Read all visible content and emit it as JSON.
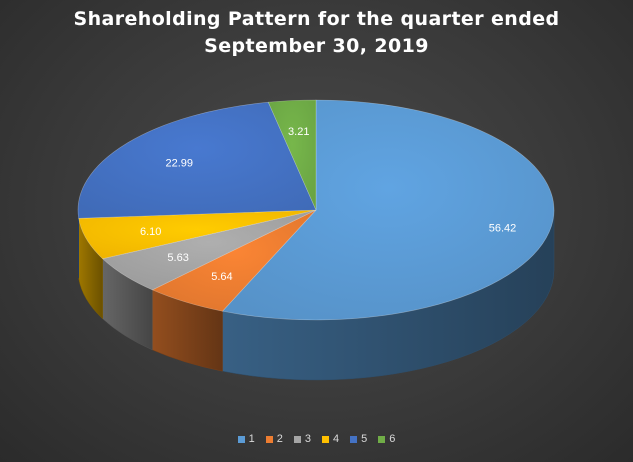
{
  "chart_data": {
    "type": "pie",
    "title_lines": [
      "Shareholding Pattern for the quarter ended",
      "September 30, 2019"
    ],
    "categories": [
      "1",
      "2",
      "3",
      "4",
      "5",
      "6"
    ],
    "values": [
      56.42,
      5.64,
      5.63,
      6.1,
      22.99,
      3.21
    ],
    "data_labels": [
      "56.42",
      "5.64",
      "5.63",
      "6.10",
      "22.99",
      "3.21"
    ],
    "colors": [
      "#5b9bd5",
      "#ed7d31",
      "#a5a5a5",
      "#ffc000",
      "#4472c4",
      "#70ad47"
    ],
    "style": "3d",
    "legend_position": "bottom",
    "background": "#404040"
  }
}
